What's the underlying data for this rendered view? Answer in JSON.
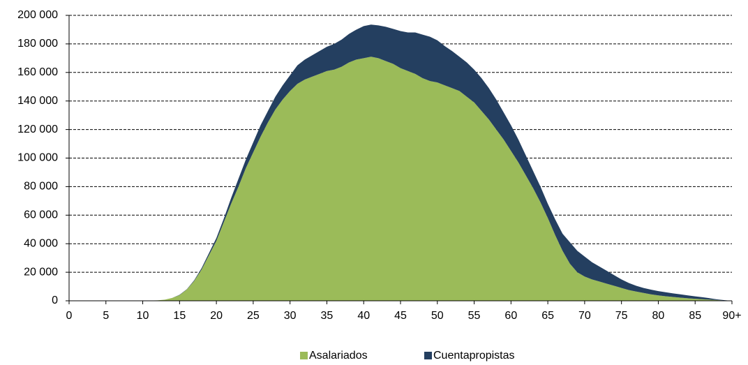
{
  "chart_data": {
    "type": "stacked_area",
    "x": [
      0,
      1,
      2,
      3,
      4,
      5,
      6,
      7,
      8,
      9,
      10,
      11,
      12,
      13,
      14,
      15,
      16,
      17,
      18,
      19,
      20,
      21,
      22,
      23,
      24,
      25,
      26,
      27,
      28,
      29,
      30,
      31,
      32,
      33,
      34,
      35,
      36,
      37,
      38,
      39,
      40,
      41,
      42,
      43,
      44,
      45,
      46,
      47,
      48,
      49,
      50,
      51,
      52,
      53,
      54,
      55,
      56,
      57,
      58,
      59,
      60,
      61,
      62,
      63,
      64,
      65,
      66,
      67,
      68,
      69,
      70,
      71,
      72,
      73,
      74,
      75,
      76,
      77,
      78,
      79,
      80,
      81,
      82,
      83,
      84,
      85,
      86,
      87,
      88,
      89,
      90
    ],
    "series": [
      {
        "name": "Asalariados",
        "color": "#9bbb59",
        "values": [
          0,
          0,
          0,
          0,
          0,
          0,
          0,
          0,
          0,
          0,
          0,
          200,
          300,
          800,
          2000,
          4000,
          8000,
          14000,
          22000,
          32000,
          42000,
          55000,
          68000,
          80000,
          93000,
          104000,
          115000,
          125000,
          134000,
          141000,
          147000,
          152000,
          155000,
          157000,
          159000,
          161000,
          162000,
          164000,
          167000,
          169000,
          170000,
          171000,
          170000,
          168000,
          166000,
          163000,
          161000,
          159000,
          156000,
          154000,
          153000,
          151000,
          149000,
          147000,
          143000,
          139000,
          133000,
          127000,
          120000,
          113000,
          105000,
          97000,
          88000,
          79000,
          69000,
          58000,
          46000,
          35000,
          26000,
          20000,
          17000,
          15000,
          13500,
          12000,
          10500,
          9000,
          7500,
          6500,
          5500,
          4500,
          3800,
          3200,
          2700,
          2200,
          1800,
          1400,
          1100,
          800,
          500,
          200,
          0
        ]
      },
      {
        "name": "Cuentapropistas",
        "color": "#243f60",
        "values": [
          0,
          0,
          0,
          0,
          0,
          0,
          0,
          0,
          0,
          0,
          0,
          0,
          0,
          0,
          0,
          200,
          200,
          500,
          1000,
          1500,
          2000,
          2500,
          4000,
          5500,
          6000,
          7000,
          8000,
          8000,
          9000,
          10000,
          11000,
          13000,
          14000,
          15000,
          16000,
          17000,
          18000,
          19000,
          20000,
          21000,
          22500,
          22500,
          23000,
          24000,
          24500,
          26000,
          27000,
          29000,
          30500,
          31000,
          29500,
          27500,
          26000,
          24000,
          24000,
          23000,
          23000,
          22000,
          21000,
          19000,
          18000,
          16000,
          14000,
          12000,
          11000,
          10000,
          11000,
          12000,
          15000,
          15000,
          14000,
          12000,
          10500,
          9000,
          7500,
          6000,
          5000,
          4000,
          3500,
          3300,
          3000,
          2800,
          2500,
          2300,
          2000,
          1700,
          1400,
          1000,
          500,
          200,
          0
        ]
      }
    ],
    "xlim": [
      0,
      90
    ],
    "xticks": [
      0,
      5,
      10,
      15,
      20,
      25,
      30,
      35,
      40,
      45,
      50,
      55,
      60,
      65,
      70,
      75,
      80,
      85,
      {
        "value": 90,
        "label": "90+"
      }
    ],
    "ylim": [
      0,
      200000
    ],
    "yticks": [
      0,
      {
        "value": 20000,
        "label": "20 000"
      },
      {
        "value": 40000,
        "label": "40 000"
      },
      {
        "value": 60000,
        "label": "60 000"
      },
      {
        "value": 80000,
        "label": "80 000"
      },
      {
        "value": 100000,
        "label": "100 000"
      },
      {
        "value": 120000,
        "label": "120 000"
      },
      {
        "value": 140000,
        "label": "140 000"
      },
      {
        "value": 160000,
        "label": "160 000"
      },
      {
        "value": 180000,
        "label": "180 000"
      },
      {
        "value": 200000,
        "label": "200 000"
      }
    ],
    "grid": true,
    "legend": "bottom"
  }
}
